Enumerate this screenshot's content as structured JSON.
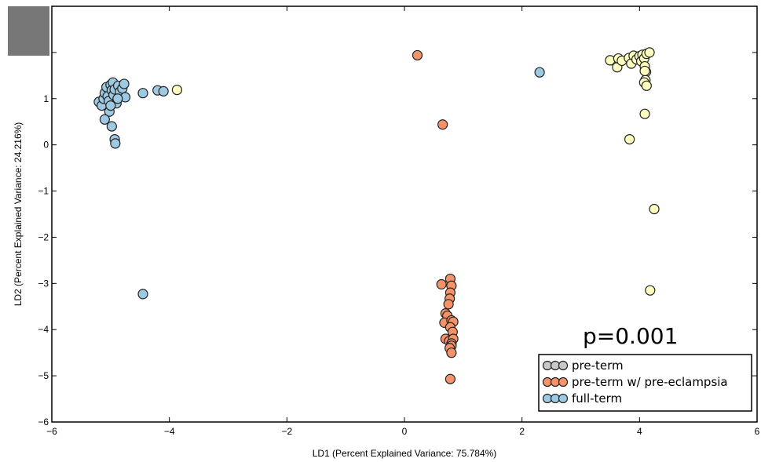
{
  "chart_data": {
    "type": "scatter",
    "title": "",
    "xlabel": "LD1 (Percent Explained Variance: 75.784%)",
    "ylabel": "LD2 (Percent Explained Variance: 24.216%)",
    "xlim": [
      -6,
      6
    ],
    "ylim": [
      -6,
      3
    ],
    "x_ticks": [
      -6,
      -4,
      -2,
      0,
      2,
      4,
      6
    ],
    "y_ticks": [
      -6,
      -5,
      -4,
      -3,
      -2,
      -1,
      0,
      1,
      2
    ],
    "x_tick_labels": [
      "−6",
      "−4",
      "−2",
      "0",
      "2",
      "4",
      "6"
    ],
    "y_tick_labels": [
      "−6",
      "−5",
      "−4",
      "−3",
      "−2",
      "−1",
      "0",
      "1",
      "2"
    ],
    "grid": false,
    "legend_position": "lower-right",
    "annotation": "p=0.001",
    "series": [
      {
        "name": "pre-term",
        "color": "#ffffc0",
        "legend_color": "#c8c8c8",
        "points": [
          [
            -3.87,
            1.19
          ],
          [
            3.5,
            1.83
          ],
          [
            3.62,
            1.68
          ],
          [
            3.64,
            1.87
          ],
          [
            3.7,
            1.82
          ],
          [
            3.82,
            1.88
          ],
          [
            3.86,
            1.76
          ],
          [
            3.9,
            1.93
          ],
          [
            3.95,
            1.85
          ],
          [
            4.0,
            1.92
          ],
          [
            4.03,
            1.81
          ],
          [
            4.05,
            1.95
          ],
          [
            4.08,
            1.87
          ],
          [
            4.12,
            1.97
          ],
          [
            4.17,
            2.0
          ],
          [
            4.09,
            1.7
          ],
          [
            4.11,
            1.58
          ],
          [
            4.1,
            1.4
          ],
          [
            4.08,
            1.35
          ],
          [
            4.12,
            1.28
          ],
          [
            4.09,
            1.6
          ],
          [
            4.09,
            0.67
          ],
          [
            3.83,
            0.12
          ],
          [
            4.25,
            -1.39
          ],
          [
            4.18,
            -3.15
          ]
        ]
      },
      {
        "name": "pre-term w/ pre-eclampsia",
        "color": "#f4936a",
        "legend_color": "#f4936a",
        "points": [
          [
            0.22,
            1.94
          ],
          [
            0.65,
            0.44
          ],
          [
            0.63,
            -3.02
          ],
          [
            0.78,
            -2.9
          ],
          [
            0.8,
            -3.05
          ],
          [
            0.78,
            -3.2
          ],
          [
            0.77,
            -3.33
          ],
          [
            0.75,
            -3.45
          ],
          [
            0.7,
            -3.65
          ],
          [
            0.73,
            -3.7
          ],
          [
            0.68,
            -3.85
          ],
          [
            0.8,
            -3.8
          ],
          [
            0.83,
            -3.83
          ],
          [
            0.78,
            -3.95
          ],
          [
            0.82,
            -4.05
          ],
          [
            0.7,
            -4.2
          ],
          [
            0.76,
            -4.25
          ],
          [
            0.83,
            -4.2
          ],
          [
            0.8,
            -4.3
          ],
          [
            0.8,
            -4.35
          ],
          [
            0.77,
            -4.4
          ],
          [
            0.8,
            -4.5
          ],
          [
            0.78,
            -5.07
          ]
        ]
      },
      {
        "name": "full-term",
        "color": "#9ec9e2",
        "legend_color": "#9ec9e2",
        "points": [
          [
            -5.2,
            0.93
          ],
          [
            -5.15,
            0.85
          ],
          [
            -5.12,
            1.0
          ],
          [
            -5.1,
            1.12
          ],
          [
            -5.07,
            1.25
          ],
          [
            -5.05,
            1.05
          ],
          [
            -5.03,
            0.95
          ],
          [
            -5.0,
            1.3
          ],
          [
            -4.98,
            1.18
          ],
          [
            -4.96,
            1.35
          ],
          [
            -4.95,
            1.08
          ],
          [
            -4.93,
            1.2
          ],
          [
            -4.9,
            0.9
          ],
          [
            -4.87,
            1.28
          ],
          [
            -4.84,
            1.15
          ],
          [
            -4.8,
            1.22
          ],
          [
            -4.77,
            1.32
          ],
          [
            -4.75,
            1.03
          ],
          [
            -5.02,
            0.72
          ],
          [
            -5.0,
            0.85
          ],
          [
            -5.1,
            0.55
          ],
          [
            -4.98,
            0.4
          ],
          [
            -4.93,
            0.12
          ],
          [
            -4.92,
            0.03
          ],
          [
            -4.88,
            1.0
          ],
          [
            -4.45,
            1.12
          ],
          [
            -4.2,
            1.18
          ],
          [
            -4.1,
            1.16
          ],
          [
            2.3,
            1.57
          ],
          [
            -4.45,
            -3.23
          ]
        ]
      }
    ]
  }
}
